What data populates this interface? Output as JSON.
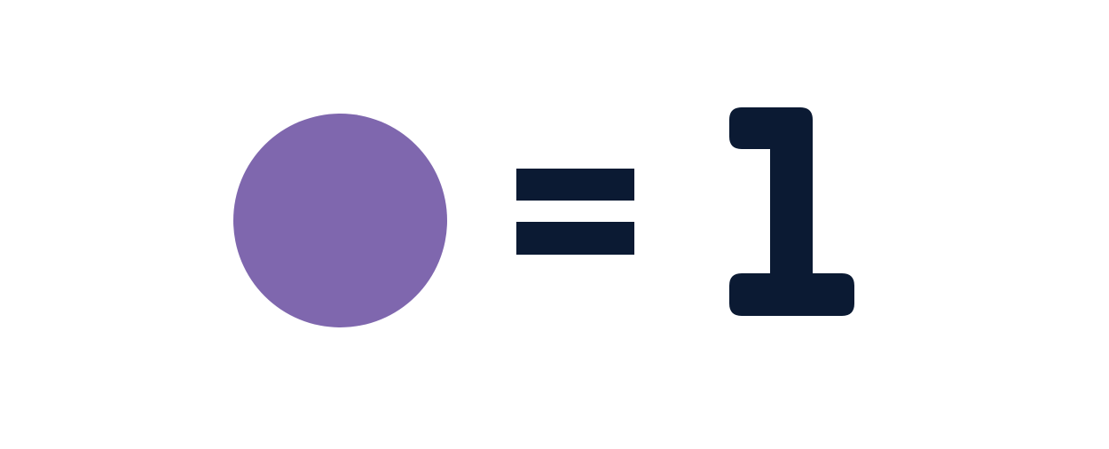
{
  "equation": {
    "symbol": {
      "shape": "circle",
      "color": "#7F67AE"
    },
    "operator": "=",
    "value": "1",
    "text_color": "#0B1A33"
  }
}
